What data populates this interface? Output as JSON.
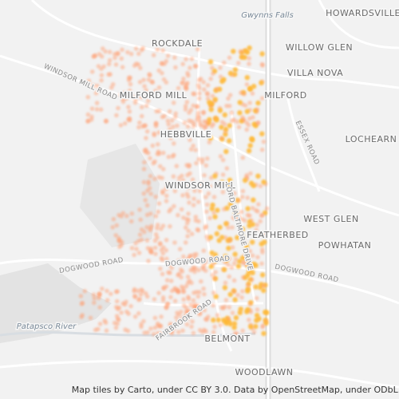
{
  "map": {
    "place_labels": [
      "HOWARDSVILLE",
      "ROCKDALE",
      "WILLOW GLEN",
      "VILLA NOVA",
      "MILFORD MILL",
      "MILFORD",
      "HEBBVILLE",
      "LOCHEARN",
      "WINDSOR MILL",
      "WEST GLEN",
      "FEATHERBED",
      "POWHATAN",
      "BELMONT",
      "WOODLAWN"
    ],
    "water_labels": [
      "Gwynns Falls",
      "Patapsco River"
    ],
    "road_labels": [
      "WINDSOR MILL ROAD",
      "ESSEX ROAD",
      "LORD BALTIMORE DRIVE",
      "DOGWOOD ROAD",
      "DOGWOOD ROAD",
      "DOGWOOD ROAD",
      "FAIRBROOK ROAD"
    ],
    "attribution": "Map tiles by Carto, under CC BY 3.0. Data by OpenStreetMap, under ODbL."
  }
}
